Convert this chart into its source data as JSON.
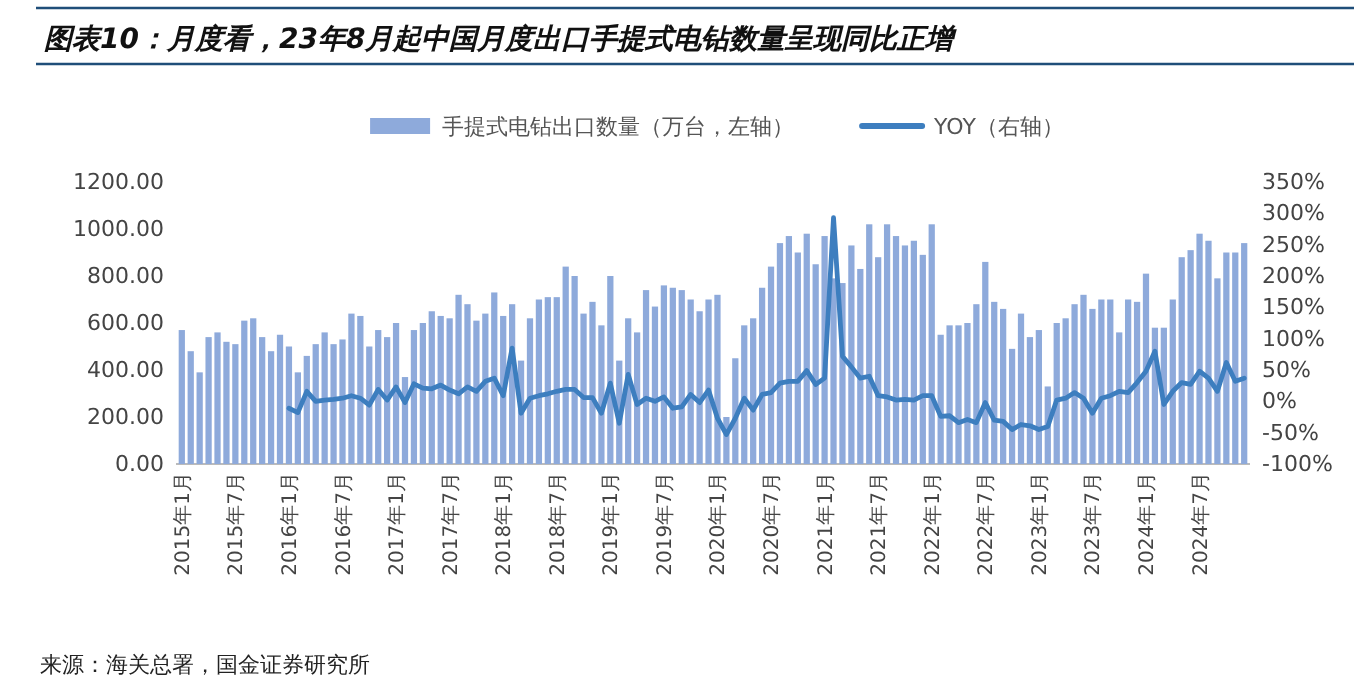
{
  "chart_data": {
    "type": "bar",
    "title": "图表10：月度看，23年8月起中国月度出口手提式电钻数量呈现同比正增",
    "categories": [
      "2015年1月",
      null,
      null,
      null,
      null,
      null,
      "2015年7月",
      null,
      null,
      null,
      null,
      null,
      "2016年1月",
      null,
      null,
      null,
      null,
      null,
      "2016年7月",
      null,
      null,
      null,
      null,
      null,
      "2017年1月",
      null,
      null,
      null,
      null,
      null,
      "2017年7月",
      null,
      null,
      null,
      null,
      null,
      "2018年1月",
      null,
      null,
      null,
      null,
      null,
      "2018年7月",
      null,
      null,
      null,
      null,
      null,
      "2019年1月",
      null,
      null,
      null,
      null,
      null,
      "2019年7月",
      null,
      null,
      null,
      null,
      null,
      "2020年1月",
      null,
      null,
      null,
      null,
      null,
      "2020年7月",
      null,
      null,
      null,
      null,
      null,
      "2021年1月",
      null,
      null,
      null,
      null,
      null,
      "2021年7月",
      null,
      null,
      null,
      null,
      null,
      "2022年1月",
      null,
      null,
      null,
      null,
      null,
      "2022年7月",
      null,
      null,
      null,
      null,
      null,
      "2023年1月",
      null,
      null,
      null,
      null,
      null,
      "2023年7月",
      null,
      null,
      null,
      null,
      null,
      "2024年1月",
      null,
      null,
      null,
      null,
      null,
      "2024年7月",
      null,
      null,
      null,
      null,
      null
    ],
    "series": [
      {
        "name": "手提式电钻出口数量（万台，左轴）",
        "color": "#8eaadb",
        "values": [
          570,
          480,
          390,
          540,
          560,
          520,
          510,
          610,
          620,
          540,
          480,
          550,
          500,
          390,
          460,
          510,
          560,
          510,
          530,
          640,
          630,
          500,
          570,
          540,
          600,
          370,
          570,
          600,
          650,
          630,
          620,
          720,
          680,
          610,
          640,
          730,
          630,
          680,
          440,
          620,
          700,
          710,
          710,
          840,
          800,
          640,
          690,
          590,
          800,
          440,
          620,
          560,
          740,
          670,
          760,
          750,
          740,
          700,
          650,
          700,
          720,
          200,
          450,
          590,
          620,
          750,
          840,
          940,
          970,
          900,
          980,
          850,
          970,
          790,
          770,
          930,
          830,
          1020,
          880,
          1020,
          970,
          930,
          950,
          890,
          1020,
          550,
          590,
          590,
          600,
          680,
          860,
          690,
          660,
          490,
          640,
          540,
          570,
          330,
          600,
          620,
          680,
          720,
          660,
          700,
          700,
          560,
          700,
          690,
          810,
          580,
          580,
          700,
          880,
          910,
          980,
          950,
          790,
          900,
          900,
          940
        ]
      },
      {
        "name": "YOY（右轴）",
        "type": "line",
        "axis": "y2",
        "color": "#3d7ebf",
        "values": [
          null,
          null,
          null,
          null,
          null,
          null,
          null,
          null,
          null,
          null,
          null,
          null,
          -11,
          -18,
          16,
          0,
          2,
          3,
          5,
          9,
          5,
          -6,
          19,
          2,
          23,
          -2,
          28,
          21,
          20,
          26,
          18,
          12,
          23,
          16,
          32,
          37,
          9,
          85,
          -19,
          5,
          9,
          12,
          16,
          19,
          19,
          6,
          6,
          -19,
          29,
          -35,
          43,
          -5,
          5,
          0,
          7,
          -11,
          -9,
          11,
          -2,
          18,
          -27,
          -53,
          -27,
          5,
          -14,
          11,
          14,
          29,
          32,
          32,
          49,
          27,
          37,
          293,
          72,
          55,
          37,
          40,
          9,
          7,
          2,
          3,
          2,
          9,
          9,
          -24,
          -23,
          -34,
          -29,
          -34,
          -2,
          -30,
          -32,
          -45,
          -37,
          -39,
          -45,
          -40,
          2,
          5,
          14,
          5,
          -19,
          5,
          9,
          16,
          14,
          30,
          48,
          80,
          -5,
          16,
          30,
          27,
          48,
          37,
          16,
          62,
          32,
          37
        ]
      }
    ],
    "ylim": [
      0,
      1200
    ],
    "yticks": [
      {
        "value": 0,
        "label": "0.00"
      },
      {
        "value": 200,
        "label": "200.00"
      },
      {
        "value": 400,
        "label": "400.00"
      },
      {
        "value": 600,
        "label": "600.00"
      },
      {
        "value": 800,
        "label": "800.00"
      },
      {
        "value": 1000,
        "label": "1000.00"
      },
      {
        "value": 1200,
        "label": "1200.00"
      }
    ],
    "y2lim": [
      -100,
      350
    ],
    "y2ticks": [
      {
        "value": -100,
        "label": "-100%"
      },
      {
        "value": -50,
        "label": "-50%"
      },
      {
        "value": 0,
        "label": "0%"
      },
      {
        "value": 50,
        "label": "50%"
      },
      {
        "value": 100,
        "label": "100%"
      },
      {
        "value": 150,
        "label": "150%"
      },
      {
        "value": 200,
        "label": "200%"
      },
      {
        "value": 250,
        "label": "250%"
      },
      {
        "value": 300,
        "label": "300%"
      },
      {
        "value": 350,
        "label": "350%"
      }
    ],
    "legend": "top",
    "annotations": [
      "来源：海关总署，国金证券研究所"
    ]
  }
}
